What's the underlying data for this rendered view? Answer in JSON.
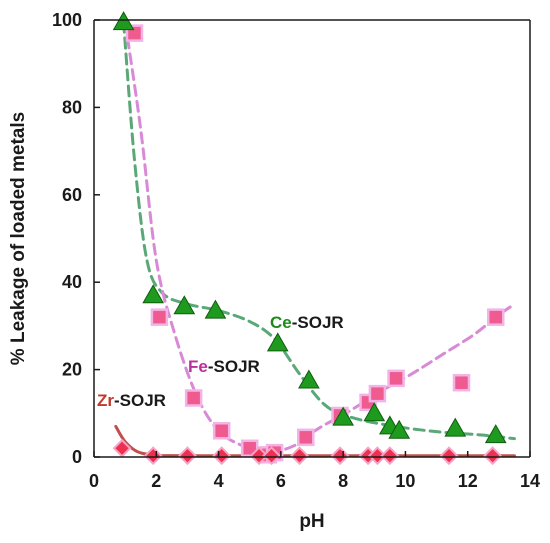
{
  "chart_data": {
    "type": "scatter",
    "title": "",
    "xlabel": "pH",
    "ylabel": "% Leakage of loaded metals",
    "xlim": [
      0,
      14
    ],
    "ylim": [
      0,
      100
    ],
    "xticks": [
      "0",
      "2",
      "4",
      "6",
      "8",
      "10",
      "12",
      "14"
    ],
    "yticks": [
      "0",
      "20",
      "40",
      "60",
      "80",
      "100"
    ],
    "grid": false,
    "legend": "inline labels",
    "series": [
      {
        "name": "Ce-SOJR",
        "label_prefix": "Ce",
        "label_suffix": "-SOJR",
        "marker": "triangle",
        "color": "#1e8a1e",
        "trend_color": "#5aa878",
        "x": [
          0.95,
          1.9,
          2.9,
          3.9,
          5.9,
          6.9,
          8.0,
          9.0,
          9.5,
          9.8,
          11.6,
          12.9
        ],
        "y": [
          99.5,
          37,
          34.5,
          33.5,
          26,
          17.5,
          9,
          10,
          7,
          6,
          6.5,
          5
        ],
        "trend": [
          [
            0.95,
            99.5
          ],
          [
            1.3,
            68
          ],
          [
            1.7,
            45
          ],
          [
            2.2,
            37.5
          ],
          [
            3.0,
            35
          ],
          [
            4.0,
            33.5
          ],
          [
            5.0,
            31
          ],
          [
            5.8,
            27
          ],
          [
            6.6,
            19
          ],
          [
            7.4,
            12
          ],
          [
            8.2,
            9.2
          ],
          [
            9.5,
            7.2
          ],
          [
            11.0,
            5.8
          ],
          [
            12.5,
            5
          ],
          [
            13.5,
            4.2
          ]
        ]
      },
      {
        "name": "Fe-SOJR",
        "label_prefix": "Fe",
        "label_suffix": "-SOJR",
        "marker": "square",
        "color": "#e8447a",
        "trend_color": "#d98ad6",
        "x": [
          1.3,
          2.1,
          3.2,
          4.1,
          5.0,
          5.6,
          5.8,
          6.8,
          7.9,
          8.8,
          9.1,
          9.7,
          11.8,
          12.9
        ],
        "y": [
          97,
          32,
          13.5,
          6,
          2,
          0.5,
          1,
          4.5,
          9.5,
          12.5,
          14.5,
          18,
          17,
          32
        ],
        "trend": [
          [
            1.0,
            99.5
          ],
          [
            1.5,
            75
          ],
          [
            2.0,
            45
          ],
          [
            2.6,
            28
          ],
          [
            3.3,
            14
          ],
          [
            4.0,
            6
          ],
          [
            4.8,
            2.5
          ],
          [
            5.6,
            1.2
          ],
          [
            6.4,
            2.5
          ],
          [
            7.2,
            6.5
          ],
          [
            8.2,
            10.5
          ],
          [
            9.2,
            15
          ],
          [
            10.2,
            19
          ],
          [
            11.2,
            23.5
          ],
          [
            12.2,
            28
          ],
          [
            12.9,
            32
          ],
          [
            13.4,
            34.5
          ]
        ]
      },
      {
        "name": "Zr-SOJR",
        "label_prefix": "Zr",
        "label_suffix": "-SOJR",
        "marker": "diamond",
        "color": "#e8324a",
        "trend_color": "#c0504d",
        "x": [
          0.9,
          1.9,
          3.0,
          4.1,
          5.3,
          5.7,
          6.6,
          7.9,
          8.8,
          9.1,
          9.5,
          11.4,
          12.8
        ],
        "y": [
          2,
          0.3,
          0.3,
          0.3,
          0.3,
          0.3,
          0.3,
          0.3,
          0.3,
          0.3,
          0.3,
          0.3,
          0.3
        ],
        "trend": [
          [
            0.7,
            7
          ],
          [
            1.0,
            3.5
          ],
          [
            1.4,
            1.2
          ],
          [
            2.0,
            0.4
          ],
          [
            3.0,
            0.3
          ],
          [
            13.5,
            0.3
          ]
        ]
      }
    ]
  }
}
